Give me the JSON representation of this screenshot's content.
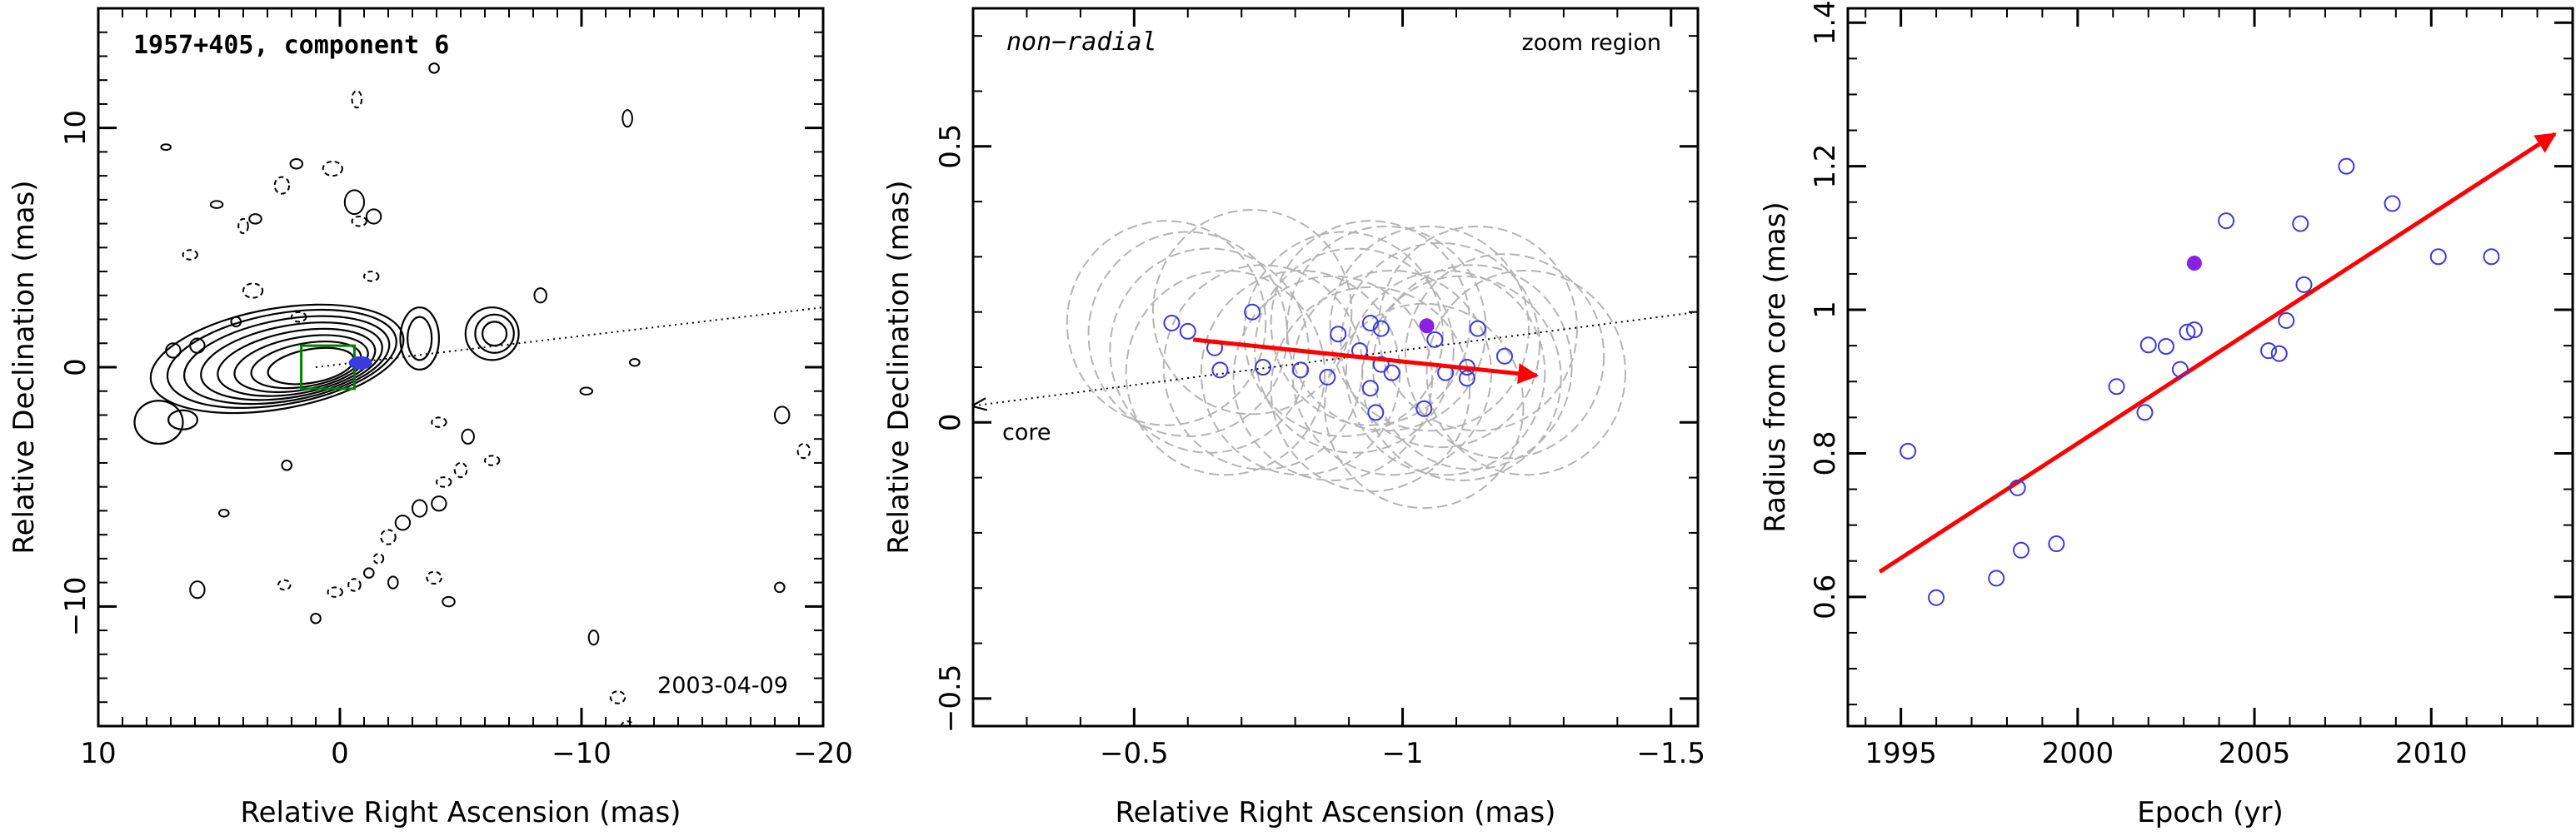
{
  "colors": {
    "axis": "#000000",
    "arrow": "#ff0000",
    "points_open": "#3a3adf",
    "point_filled": "#8a1fe6",
    "circles": "#b4b4b4",
    "zoom_box": "#008000",
    "contour": "#000000"
  },
  "chart_data": [
    {
      "type": "contour",
      "title": "1957+405, component 6",
      "epoch_label": "2003-04-09",
      "xlabel": "Relative Right Ascension (mas)",
      "ylabel": "Relative Declination (mas)",
      "xlim": [
        10,
        -20
      ],
      "ylim": [
        -15,
        15
      ],
      "xticks": [
        10,
        0,
        -10,
        -20
      ],
      "yticks": [
        10,
        0,
        -10
      ],
      "xtick_labels": [
        "10",
        "0",
        "−10",
        "−20"
      ],
      "ytick_labels": [
        "10",
        "0",
        "−10"
      ],
      "direction_line": [
        [
          1,
          0
        ],
        [
          -20,
          2.5
        ]
      ],
      "zoom_box": [
        [
          1.6,
          -0.9
        ],
        [
          -0.6,
          0.9
        ]
      ],
      "component_marker": [
        -0.85,
        0.18
      ],
      "core_contours": [
        {
          "cx": 1.2,
          "cy": 0.05,
          "rx": 1.8,
          "ry": 0.7,
          "tilt": 10
        },
        {
          "cx": 1.4,
          "cy": 0.1,
          "rx": 2.3,
          "ry": 0.9,
          "tilt": 10
        },
        {
          "cx": 1.6,
          "cy": 0.15,
          "rx": 2.8,
          "ry": 1.1,
          "tilt": 10
        },
        {
          "cx": 1.8,
          "cy": 0.2,
          "rx": 3.3,
          "ry": 1.3,
          "tilt": 10
        },
        {
          "cx": 2.0,
          "cy": 0.25,
          "rx": 3.8,
          "ry": 1.5,
          "tilt": 10
        },
        {
          "cx": 2.2,
          "cy": 0.3,
          "rx": 4.3,
          "ry": 1.7,
          "tilt": 10
        },
        {
          "cx": 2.4,
          "cy": 0.35,
          "rx": 4.8,
          "ry": 1.9,
          "tilt": 10
        },
        {
          "cx": 2.6,
          "cy": 0.35,
          "rx": 5.3,
          "ry": 2.1,
          "tilt": 10
        }
      ],
      "knot_contours": [
        {
          "cx": -3.3,
          "cy": 1.2,
          "rx": 0.5,
          "ry": 0.9
        },
        {
          "cx": -3.3,
          "cy": 1.2,
          "rx": 0.8,
          "ry": 1.3
        },
        {
          "cx": -6.4,
          "cy": 1.4,
          "rx": 0.5,
          "ry": 0.5
        },
        {
          "cx": -6.4,
          "cy": 1.4,
          "rx": 0.8,
          "ry": 0.8
        },
        {
          "cx": -6.3,
          "cy": 1.4,
          "rx": 1.1,
          "ry": 1.1
        },
        {
          "cx": 6.5,
          "cy": -2.2,
          "rx": 0.6,
          "ry": 0.4
        },
        {
          "cx": 7.5,
          "cy": -2.3,
          "rx": 1.0,
          "ry": 0.9
        }
      ],
      "noise_contours": [
        [
          7.2,
          9.2,
          0.2,
          0.12,
          "solid"
        ],
        [
          6.2,
          4.7,
          0.3,
          0.2,
          "dashed"
        ],
        [
          5.1,
          6.8,
          0.25,
          0.15,
          "solid"
        ],
        [
          4.0,
          5.9,
          0.2,
          0.3,
          "dashed"
        ],
        [
          3.5,
          6.2,
          0.25,
          0.2,
          "solid"
        ],
        [
          2.4,
          7.6,
          0.3,
          0.35,
          "dashed"
        ],
        [
          1.8,
          8.5,
          0.25,
          0.2,
          "solid"
        ],
        [
          0.3,
          8.3,
          0.4,
          0.3,
          "dashed"
        ],
        [
          -0.6,
          6.9,
          0.4,
          0.5,
          "solid"
        ],
        [
          -0.8,
          6.1,
          0.3,
          0.2,
          "dashed"
        ],
        [
          -1.4,
          6.3,
          0.3,
          0.3,
          "solid"
        ],
        [
          -1.3,
          3.8,
          0.3,
          0.2,
          "dashed"
        ],
        [
          -0.7,
          11.2,
          0.2,
          0.35,
          "dashed"
        ],
        [
          -3.9,
          12.5,
          0.2,
          0.2,
          "solid"
        ],
        [
          -11.9,
          10.4,
          0.2,
          0.35,
          "solid"
        ],
        [
          1.7,
          2.1,
          0.3,
          0.2,
          "dashed"
        ],
        [
          3.6,
          3.2,
          0.4,
          0.3,
          "dashed"
        ],
        [
          4.3,
          1.9,
          0.2,
          0.2,
          "solid"
        ],
        [
          5.9,
          0.9,
          0.3,
          0.3,
          "solid"
        ],
        [
          6.9,
          0.7,
          0.3,
          0.3,
          "solid"
        ],
        [
          -8.3,
          3.0,
          0.25,
          0.3,
          "solid"
        ],
        [
          -10.2,
          -1.0,
          0.25,
          0.15,
          "solid"
        ],
        [
          -12.2,
          0.2,
          0.2,
          0.15,
          "solid"
        ],
        [
          -18.3,
          -2.0,
          0.3,
          0.35,
          "solid"
        ],
        [
          -19.2,
          -3.5,
          0.25,
          0.3,
          "dashed"
        ],
        [
          -4.1,
          -2.3,
          0.3,
          0.2,
          "dashed"
        ],
        [
          -5.3,
          -2.9,
          0.25,
          0.3,
          "solid"
        ],
        [
          -6.3,
          -3.9,
          0.3,
          0.2,
          "dashed"
        ],
        [
          -5.0,
          -4.3,
          0.25,
          0.3,
          "dashed"
        ],
        [
          -4.3,
          -4.8,
          0.3,
          0.2,
          "dashed"
        ],
        [
          -4.1,
          -5.7,
          0.3,
          0.3,
          "solid"
        ],
        [
          -3.3,
          -5.9,
          0.3,
          0.35,
          "solid"
        ],
        [
          -2.6,
          -6.5,
          0.3,
          0.3,
          "solid"
        ],
        [
          -2.0,
          -7.1,
          0.3,
          0.3,
          "dashed"
        ],
        [
          -1.6,
          -8.0,
          0.2,
          0.2,
          "dashed"
        ],
        [
          -1.2,
          -8.6,
          0.2,
          0.2,
          "solid"
        ],
        [
          -0.6,
          -9.1,
          0.25,
          0.25,
          "dashed"
        ],
        [
          0.2,
          -9.4,
          0.3,
          0.2,
          "dashed"
        ],
        [
          2.3,
          -9.1,
          0.25,
          0.2,
          "dashed"
        ],
        [
          1.0,
          -10.5,
          0.2,
          0.2,
          "solid"
        ],
        [
          -4.5,
          -9.8,
          0.25,
          0.2,
          "solid"
        ],
        [
          -18.2,
          -9.2,
          0.2,
          0.2,
          "solid"
        ],
        [
          5.9,
          -9.3,
          0.3,
          0.35,
          "solid"
        ],
        [
          2.2,
          -4.1,
          0.2,
          0.2,
          "solid"
        ],
        [
          4.8,
          -6.1,
          0.2,
          0.15,
          "solid"
        ],
        [
          -10.5,
          -11.3,
          0.2,
          0.3,
          "solid"
        ],
        [
          -11.5,
          -13.8,
          0.3,
          0.25,
          "dashed"
        ],
        [
          -11.9,
          -15.0,
          0.25,
          0.2,
          "dashed"
        ],
        [
          -3.9,
          -8.8,
          0.3,
          0.25,
          "dashed"
        ],
        [
          -2.2,
          -9.0,
          0.2,
          0.25,
          "solid"
        ]
      ]
    },
    {
      "type": "scatter",
      "title": "non−radial",
      "corner_label": "zoom region",
      "core_label": "core",
      "xlabel": "Relative Right Ascension (mas)",
      "ylabel": "Relative Declination (mas)",
      "xlim": [
        -0.2,
        -1.55
      ],
      "ylim": [
        -0.55,
        0.75
      ],
      "xticks": [
        -0.5,
        -1,
        -1.5
      ],
      "yticks": [
        0.5,
        0,
        -0.5
      ],
      "xtick_labels": [
        "−0.5",
        "−1",
        "−1.5"
      ],
      "ytick_labels": [
        "0.5",
        "0",
        "−0.5"
      ],
      "direction_line": [
        [
          -1.55,
          0.2
        ],
        [
          -0.2,
          0.03
        ]
      ],
      "fit_arrow": [
        [
          -0.61,
          0.15
        ],
        [
          -1.25,
          0.085
        ]
      ],
      "points": [
        [
          -0.57,
          0.18
        ],
        [
          -0.6,
          0.165
        ],
        [
          -0.65,
          0.135
        ],
        [
          -0.66,
          0.095
        ],
        [
          -0.72,
          0.2
        ],
        [
          -0.74,
          0.1
        ],
        [
          -0.81,
          0.095
        ],
        [
          -0.86,
          0.082
        ],
        [
          -0.88,
          0.16
        ],
        [
          -0.92,
          0.13
        ],
        [
          -0.94,
          0.062
        ],
        [
          -0.94,
          0.18
        ],
        [
          -0.96,
          0.17
        ],
        [
          -0.98,
          0.09
        ],
        [
          -0.95,
          0.018
        ],
        [
          -0.96,
          0.105
        ],
        [
          -1.04,
          0.025
        ],
        [
          -1.06,
          0.15
        ],
        [
          -1.08,
          0.09
        ],
        [
          -1.12,
          0.08
        ],
        [
          -1.12,
          0.1
        ],
        [
          -1.14,
          0.17
        ],
        [
          -1.19,
          0.12
        ]
      ],
      "highlight_point": [
        -1.045,
        0.175
      ],
      "circle_radius": 0.185,
      "circles": [
        [
          -0.56,
          0.18
        ],
        [
          -0.6,
          0.16
        ],
        [
          -0.64,
          0.13
        ],
        [
          -0.67,
          0.09
        ],
        [
          -0.72,
          0.2
        ],
        [
          -0.74,
          0.1
        ],
        [
          -0.81,
          0.09
        ],
        [
          -0.87,
          0.08
        ],
        [
          -0.89,
          0.16
        ],
        [
          -0.91,
          0.13
        ],
        [
          -0.94,
          0.06
        ],
        [
          -0.94,
          0.18
        ],
        [
          -0.97,
          0.17
        ],
        [
          -0.98,
          0.09
        ],
        [
          -1.04,
          0.03
        ],
        [
          -1.05,
          0.17
        ],
        [
          -1.07,
          0.14
        ],
        [
          -1.08,
          0.09
        ],
        [
          -1.11,
          0.08
        ],
        [
          -1.13,
          0.1
        ],
        [
          -1.14,
          0.17
        ],
        [
          -1.19,
          0.12
        ],
        [
          -1.23,
          0.09
        ]
      ]
    },
    {
      "type": "scatter",
      "xlabel": "Epoch (yr)",
      "ylabel": "Radius from core (mas)",
      "xlim": [
        1993.5,
        2014
      ],
      "ylim": [
        0.42,
        1.42
      ],
      "xticks": [
        1995,
        2000,
        2005,
        2010
      ],
      "yticks": [
        0.6,
        0.8,
        1,
        1.2,
        1.4
      ],
      "xtick_labels": [
        "1995",
        "2000",
        "2005",
        "2010"
      ],
      "ytick_labels": [
        "0.6",
        "0.8",
        "1",
        "1.2",
        "1.4"
      ],
      "fit_arrow": [
        [
          1994.4,
          0.635
        ],
        [
          2013.5,
          1.245
        ]
      ],
      "points": [
        [
          1995.2,
          0.803
        ],
        [
          1996.0,
          0.599
        ],
        [
          1997.7,
          0.626
        ],
        [
          1998.3,
          0.752
        ],
        [
          1998.4,
          0.665
        ],
        [
          1999.4,
          0.674
        ],
        [
          2001.1,
          0.893
        ],
        [
          2001.9,
          0.857
        ],
        [
          2002.0,
          0.951
        ],
        [
          2002.5,
          0.949
        ],
        [
          2002.9,
          0.917
        ],
        [
          2003.1,
          0.969
        ],
        [
          2003.3,
          0.972
        ],
        [
          2004.2,
          1.124
        ],
        [
          2005.4,
          0.943
        ],
        [
          2005.7,
          0.939
        ],
        [
          2005.9,
          0.985
        ],
        [
          2006.3,
          1.12
        ],
        [
          2006.4,
          1.035
        ],
        [
          2007.6,
          1.2
        ],
        [
          2008.9,
          1.148
        ],
        [
          2010.2,
          1.074
        ],
        [
          2011.7,
          1.074
        ]
      ],
      "highlight_point": [
        2003.3,
        1.065
      ]
    }
  ]
}
